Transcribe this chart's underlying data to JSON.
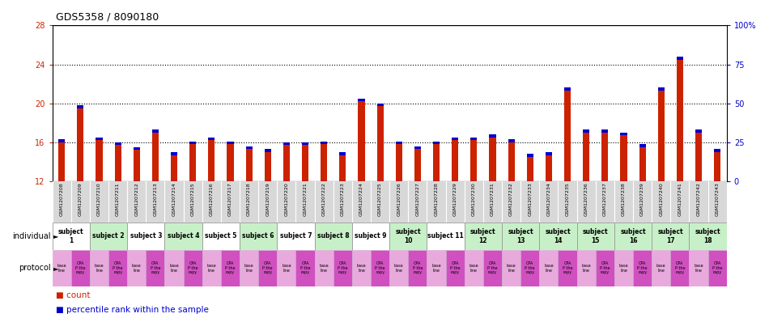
{
  "title": "GDS5358 / 8090180",
  "gsm_labels": [
    "GSM1207208",
    "GSM1207209",
    "GSM1207210",
    "GSM1207211",
    "GSM1207212",
    "GSM1207213",
    "GSM1207214",
    "GSM1207215",
    "GSM1207216",
    "GSM1207217",
    "GSM1207218",
    "GSM1207219",
    "GSM1207220",
    "GSM1207221",
    "GSM1207222",
    "GSM1207223",
    "GSM1207224",
    "GSM1207225",
    "GSM1207226",
    "GSM1207227",
    "GSM1207228",
    "GSM1207229",
    "GSM1207230",
    "GSM1207231",
    "GSM1207232",
    "GSM1207233",
    "GSM1207234",
    "GSM1207235",
    "GSM1207236",
    "GSM1207237",
    "GSM1207238",
    "GSM1207239",
    "GSM1207240",
    "GSM1207241",
    "GSM1207242",
    "GSM1207243"
  ],
  "red_values": [
    16.0,
    19.5,
    16.2,
    15.7,
    15.2,
    17.0,
    14.7,
    15.8,
    16.2,
    15.8,
    15.3,
    15.0,
    15.7,
    15.7,
    15.8,
    14.7,
    20.2,
    19.7,
    15.8,
    15.3,
    15.8,
    16.2,
    16.2,
    16.5,
    16.0,
    14.5,
    14.7,
    21.3,
    17.0,
    17.0,
    16.7,
    15.5,
    21.3,
    24.5,
    17.0,
    15.0
  ],
  "blue_values": [
    0.3,
    0.3,
    0.3,
    0.3,
    0.3,
    0.3,
    0.3,
    0.3,
    0.3,
    0.3,
    0.3,
    0.3,
    0.3,
    0.3,
    0.3,
    0.3,
    0.3,
    0.3,
    0.3,
    0.3,
    0.3,
    0.3,
    0.3,
    0.3,
    0.3,
    0.3,
    0.3,
    0.3,
    0.3,
    0.3,
    0.3,
    0.3,
    0.3,
    0.3,
    0.3,
    0.3
  ],
  "y_min": 12,
  "y_max": 28,
  "y_ticks_left": [
    12,
    16,
    20,
    24,
    28
  ],
  "dotted_lines": [
    16,
    20,
    24
  ],
  "subjects": [
    {
      "label": "subject\n1",
      "start": 0,
      "end": 2,
      "color": "#ffffff"
    },
    {
      "label": "subject 2",
      "start": 2,
      "end": 4,
      "color": "#c8f0c8"
    },
    {
      "label": "subject 3",
      "start": 4,
      "end": 6,
      "color": "#ffffff"
    },
    {
      "label": "subject 4",
      "start": 6,
      "end": 8,
      "color": "#c8f0c8"
    },
    {
      "label": "subject 5",
      "start": 8,
      "end": 10,
      "color": "#ffffff"
    },
    {
      "label": "subject 6",
      "start": 10,
      "end": 12,
      "color": "#c8f0c8"
    },
    {
      "label": "subject 7",
      "start": 12,
      "end": 14,
      "color": "#ffffff"
    },
    {
      "label": "subject 8",
      "start": 14,
      "end": 16,
      "color": "#c8f0c8"
    },
    {
      "label": "subject 9",
      "start": 16,
      "end": 18,
      "color": "#ffffff"
    },
    {
      "label": "subject\n10",
      "start": 18,
      "end": 20,
      "color": "#c8f0c8"
    },
    {
      "label": "subject 11",
      "start": 20,
      "end": 22,
      "color": "#ffffff"
    },
    {
      "label": "subject\n12",
      "start": 22,
      "end": 24,
      "color": "#c8f0c8"
    },
    {
      "label": "subject\n13",
      "start": 24,
      "end": 26,
      "color": "#c8f0c8"
    },
    {
      "label": "subject\n14",
      "start": 26,
      "end": 28,
      "color": "#c8f0c8"
    },
    {
      "label": "subject\n15",
      "start": 28,
      "end": 30,
      "color": "#c8f0c8"
    },
    {
      "label": "subject\n16",
      "start": 30,
      "end": 32,
      "color": "#c8f0c8"
    },
    {
      "label": "subject\n17",
      "start": 32,
      "end": 34,
      "color": "#c8f0c8"
    },
    {
      "label": "subject\n18",
      "start": 34,
      "end": 36,
      "color": "#c8f0c8"
    }
  ],
  "gsm_bg_color": "#d8d8d8",
  "bar_width": 0.35,
  "bar_color_red": "#cc2200",
  "bar_color_blue": "#0000cc",
  "tick_color_left": "#cc2200",
  "tick_color_right": "#0000cc",
  "prot_color_baseline": "#e8aadc",
  "prot_color_cpa": "#d050c0"
}
